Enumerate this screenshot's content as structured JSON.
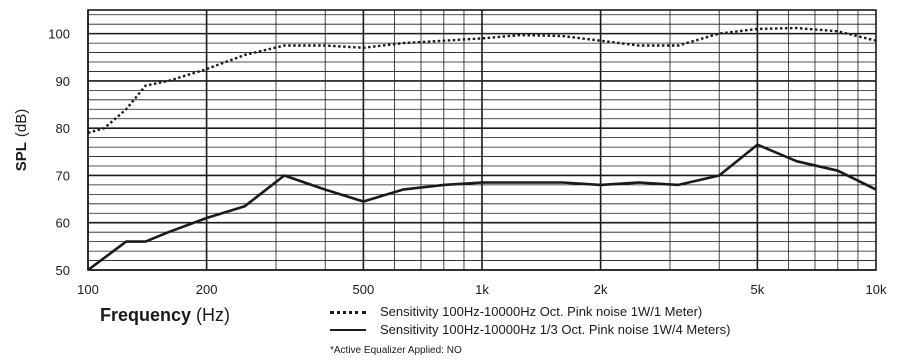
{
  "chart_data": {
    "type": "line",
    "x_scale": "log",
    "xlim": [
      100,
      10000
    ],
    "ylim": [
      50,
      105
    ],
    "grid": true,
    "xlabel": {
      "bold": "Frequency",
      "unit": "(Hz)"
    },
    "ylabel": {
      "bold": "SPL",
      "unit": "(dB)"
    },
    "x_ticks": [
      {
        "value": 100,
        "label": "100"
      },
      {
        "value": 200,
        "label": "200"
      },
      {
        "value": 500,
        "label": "500"
      },
      {
        "value": 1000,
        "label": "1k"
      },
      {
        "value": 2000,
        "label": "2k"
      },
      {
        "value": 5000,
        "label": "5k"
      },
      {
        "value": 10000,
        "label": "10k"
      }
    ],
    "y_ticks": [
      50,
      60,
      70,
      80,
      90,
      100
    ],
    "series": [
      {
        "name": "Sensitivity 100Hz-10000Hz Oct. Pink noise 1W/1 Meter)",
        "style": "dotted",
        "x": [
          100,
          110,
          125,
          140,
          160,
          200,
          250,
          315,
          400,
          500,
          630,
          800,
          1000,
          1250,
          1600,
          2000,
          2500,
          3150,
          4000,
          5000,
          6300,
          8000,
          10000
        ],
        "y": [
          79,
          80,
          84,
          89,
          90,
          92.5,
          95.5,
          97.5,
          97.5,
          97,
          98,
          98.5,
          99,
          99.7,
          99.5,
          98.5,
          97.5,
          97.5,
          100,
          101,
          101.2,
          100.5,
          98.5
        ]
      },
      {
        "name": "Sensitivity 100Hz-10000Hz 1/3 Oct. Pink noise 1W/4 Meters)",
        "style": "solid",
        "x": [
          100,
          125,
          140,
          160,
          200,
          250,
          315,
          400,
          500,
          630,
          800,
          1000,
          1250,
          1600,
          2000,
          2500,
          3150,
          4000,
          5000,
          6300,
          8000,
          10000
        ],
        "y": [
          50,
          56,
          56,
          58,
          61,
          63.5,
          70,
          67,
          64.5,
          67,
          68,
          68.5,
          68.5,
          68.5,
          68,
          68.5,
          68,
          70,
          76.5,
          73,
          71,
          67
        ]
      }
    ],
    "note": "*Active Equalizer Applied: NO"
  }
}
